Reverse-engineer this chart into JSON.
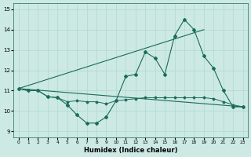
{
  "xlabel": "Humidex (Indice chaleur)",
  "bg_color": "#cce9e4",
  "grid_color": "#b0d8d0",
  "line_color": "#1a6b5a",
  "xlim": [
    -0.5,
    23.5
  ],
  "ylim": [
    8.7,
    15.3
  ],
  "xticks": [
    0,
    1,
    2,
    3,
    4,
    5,
    6,
    7,
    8,
    9,
    10,
    11,
    12,
    13,
    14,
    15,
    16,
    17,
    18,
    19,
    20,
    21,
    22,
    23
  ],
  "yticks": [
    9,
    10,
    11,
    12,
    13,
    14,
    15
  ],
  "line1_x": [
    0,
    1,
    2,
    3,
    4,
    5,
    6,
    7,
    8,
    9,
    10,
    11,
    12,
    13,
    14,
    15,
    16,
    17,
    18,
    19,
    20,
    21,
    22,
    23
  ],
  "line1_y": [
    11.1,
    11.0,
    11.0,
    10.7,
    10.65,
    10.3,
    9.8,
    9.4,
    9.4,
    9.7,
    10.5,
    11.7,
    11.8,
    12.9,
    12.6,
    11.8,
    13.7,
    14.5,
    14.0,
    12.7,
    12.1,
    11.0,
    10.2,
    10.2
  ],
  "line2_x": [
    0,
    19
  ],
  "line2_y": [
    11.1,
    14.0
  ],
  "line3_x": [
    0,
    1,
    2,
    3,
    4,
    5,
    6,
    7,
    8,
    9,
    10,
    11,
    12,
    13,
    14,
    15,
    16,
    17,
    18,
    19,
    20,
    21,
    22,
    23
  ],
  "line3_y": [
    11.1,
    11.0,
    11.0,
    10.7,
    10.65,
    10.45,
    10.5,
    10.45,
    10.45,
    10.35,
    10.5,
    10.55,
    10.6,
    10.65,
    10.65,
    10.65,
    10.65,
    10.65,
    10.65,
    10.65,
    10.6,
    10.45,
    10.3,
    10.2
  ],
  "line4_x": [
    0,
    23
  ],
  "line4_y": [
    11.1,
    10.2
  ]
}
